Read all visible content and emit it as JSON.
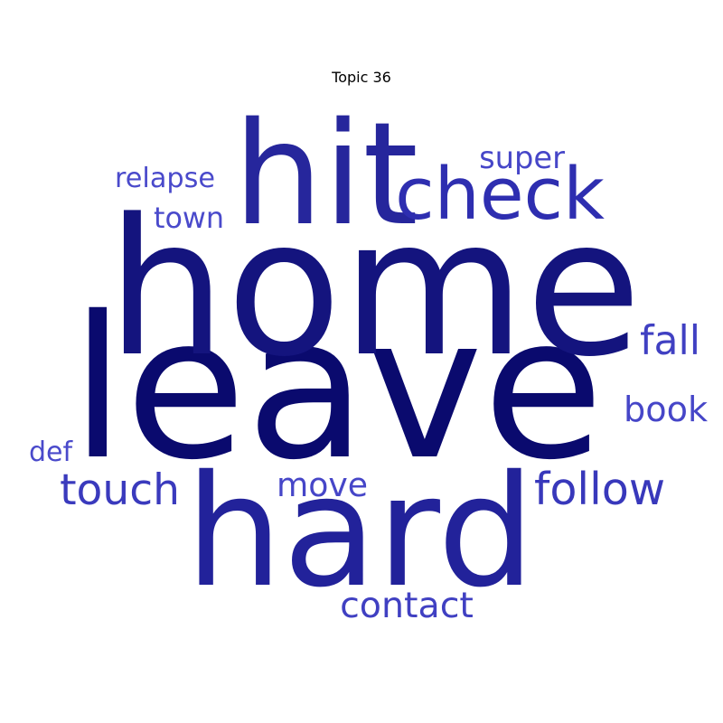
{
  "title": "Topic 36",
  "colors": {
    "darkest": "#0a0a6e",
    "dark": "#14147e",
    "mid": "#22229a",
    "medium": "#2e2eb0",
    "light": "#4646c8"
  },
  "words": [
    {
      "id": "leave",
      "text": "leave",
      "color": "#0a0a6e"
    },
    {
      "id": "home",
      "text": "home",
      "color": "#14147e"
    },
    {
      "id": "hard",
      "text": "hard",
      "color": "#22229a"
    },
    {
      "id": "hit",
      "text": "hit",
      "color": "#26269c"
    },
    {
      "id": "check",
      "text": "check",
      "color": "#2e2eb0"
    },
    {
      "id": "follow",
      "text": "follow",
      "color": "#3838bb"
    },
    {
      "id": "touch",
      "text": "touch",
      "color": "#3a3abd"
    },
    {
      "id": "fall",
      "text": "fall",
      "color": "#4040c2"
    },
    {
      "id": "contact",
      "text": "contact",
      "color": "#4040c2"
    },
    {
      "id": "book",
      "text": "book",
      "color": "#4646c8"
    },
    {
      "id": "super",
      "text": "super",
      "color": "#4646c8"
    },
    {
      "id": "move",
      "text": "move",
      "color": "#4646c8"
    },
    {
      "id": "relapse",
      "text": "relapse",
      "color": "#4a4acb"
    },
    {
      "id": "town",
      "text": "town",
      "color": "#4a4acb"
    },
    {
      "id": "def",
      "text": "def",
      "color": "#4a4acb"
    }
  ]
}
